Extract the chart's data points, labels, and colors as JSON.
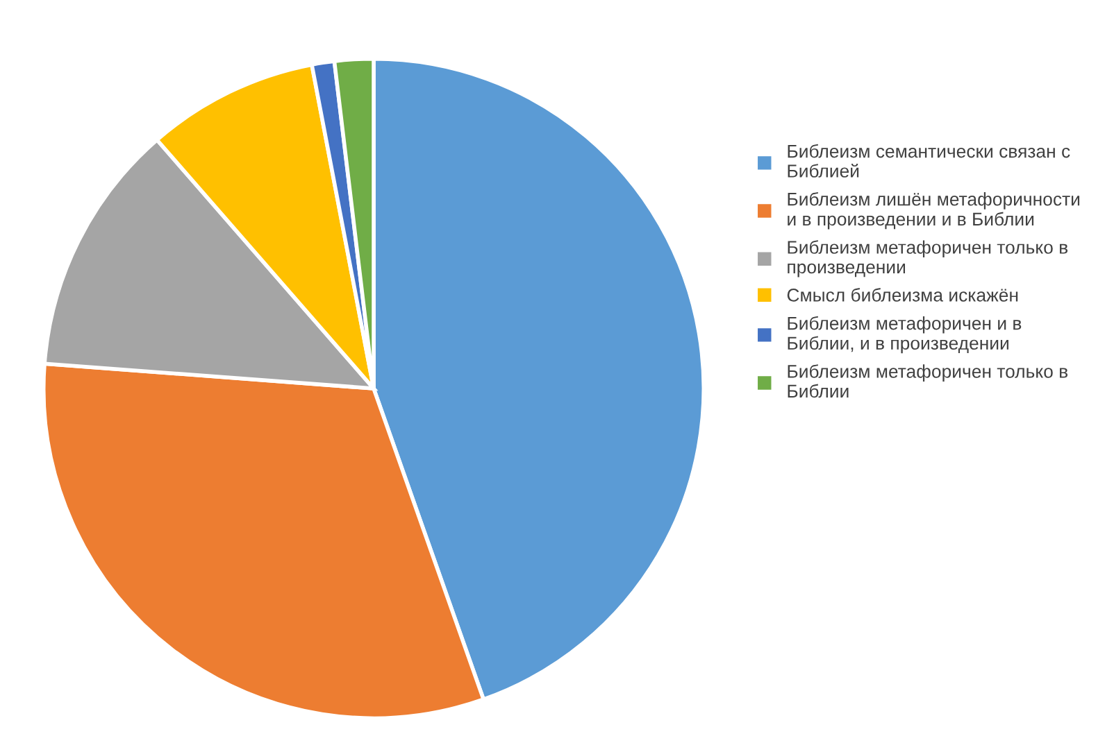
{
  "chart_data": {
    "type": "pie",
    "categories": [
      "Библеизм семантически связан с Библией",
      "Библеизм лишён метафоричности и в произведении и в Библии",
      "Библеизм метафоричен только в произведении",
      "Смысл библеизма искажён",
      "Библеизм метафоричен и в Библии, и в произведении",
      "Библеизм метафоричен только в Библии"
    ],
    "values": [
      44.6,
      31.6,
      12.4,
      8.4,
      1.1,
      1.9
    ],
    "colors": [
      "#5b9bd5",
      "#ed7d31",
      "#a5a5a5",
      "#ffc000",
      "#4472c4",
      "#70ad47"
    ],
    "legend": "right"
  }
}
